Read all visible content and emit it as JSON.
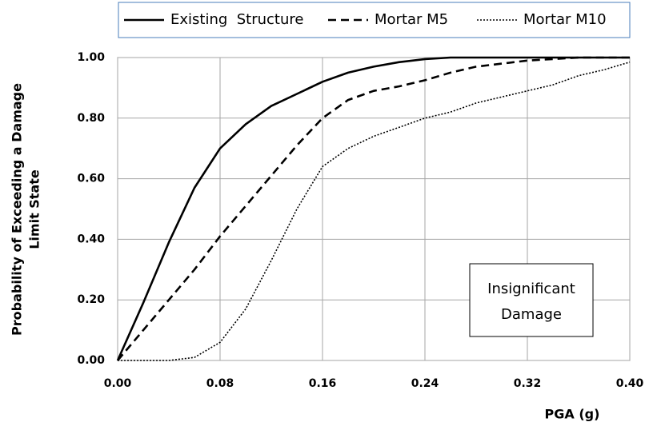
{
  "chart_data": {
    "type": "line",
    "legend_items_order": null,
    "xlabel": "PGA (g)",
    "ylabel": [
      "Probability of Exceeding a Damage",
      "Limit State"
    ],
    "annotation": [
      "Insignificant",
      "Damage"
    ],
    "x": [
      0,
      0.02,
      0.04,
      0.06,
      0.08,
      0.1,
      0.12,
      0.14,
      0.16,
      0.18,
      0.2,
      0.22,
      0.24,
      0.26,
      0.28,
      0.3,
      0.32,
      0.34,
      0.36,
      0.38,
      0.4
    ],
    "series": [
      {
        "name": "Existing  Structure",
        "color": "#000000",
        "dash": "solid",
        "values": [
          0,
          0.19,
          0.39,
          0.57,
          0.7,
          0.78,
          0.84,
          0.88,
          0.92,
          0.95,
          0.97,
          0.985,
          0.995,
          1,
          1,
          1,
          1,
          1,
          1,
          1,
          1
        ]
      },
      {
        "name": "Mortar M5",
        "color": "#000000",
        "dash": "dashed",
        "values": [
          0,
          0.1,
          0.2,
          0.3,
          0.41,
          0.51,
          0.61,
          0.71,
          0.8,
          0.86,
          0.89,
          0.905,
          0.925,
          0.95,
          0.97,
          0.98,
          0.99,
          0.995,
          1,
          1,
          1
        ]
      },
      {
        "name": "Mortar M10",
        "color": "#000000",
        "dash": "dotted",
        "values": [
          0,
          0,
          0,
          0.01,
          0.06,
          0.17,
          0.33,
          0.5,
          0.64,
          0.7,
          0.74,
          0.77,
          0.8,
          0.82,
          0.85,
          0.87,
          0.89,
          0.91,
          0.94,
          0.96,
          0.985
        ]
      }
    ],
    "xlim": [
      0,
      0.4
    ],
    "ylim": [
      0,
      1
    ],
    "xticks": [
      {
        "value": 0,
        "label": "0.00"
      },
      {
        "value": 0.08,
        "label": "0.08"
      },
      {
        "value": 0.16,
        "label": "0.16"
      },
      {
        "value": 0.24,
        "label": "0.24"
      },
      {
        "value": 0.32,
        "label": "0.32"
      },
      {
        "value": 0.4,
        "label": "0.40"
      }
    ],
    "yticks": [
      {
        "value": 0,
        "label": "0.00"
      },
      {
        "value": 0.2,
        "label": "0.20"
      },
      {
        "value": 0.4,
        "label": "0.40"
      },
      {
        "value": 0.6,
        "label": "0.60"
      },
      {
        "value": 0.8,
        "label": "0.80"
      },
      {
        "value": 1,
        "label": "1.00"
      }
    ],
    "grid": true
  }
}
